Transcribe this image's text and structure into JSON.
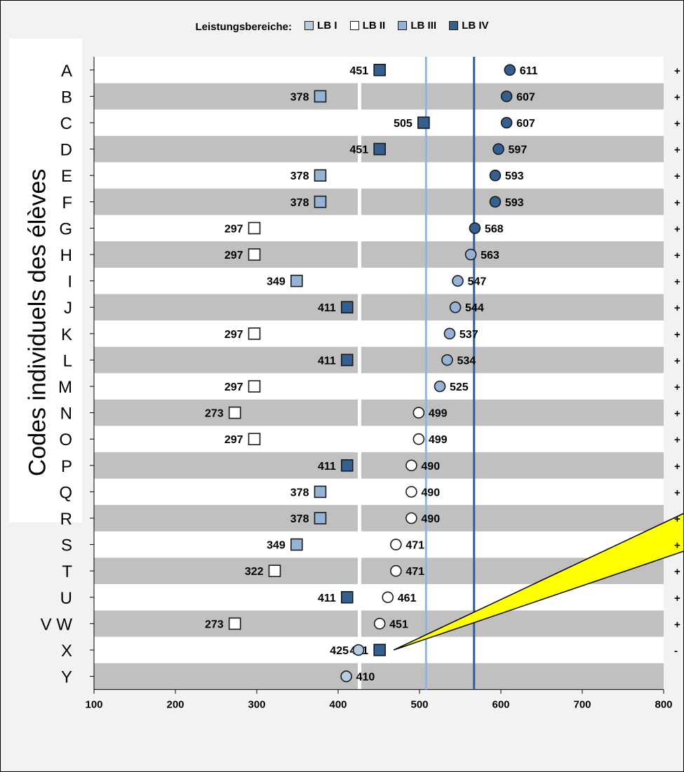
{
  "legend": {
    "title": "Leistungsbereiche:",
    "items": [
      {
        "label": "LB I",
        "color": "#b8cce4"
      },
      {
        "label": "LB II",
        "color": "#ffffff"
      },
      {
        "label": "LB III",
        "color": "#95b3d7"
      },
      {
        "label": "LB IV",
        "color": "#365f91"
      }
    ]
  },
  "chart_data": {
    "type": "scatter",
    "title": "",
    "xlabel": "",
    "ylabel": "Codes individuels des élèves",
    "xlim": [
      100,
      800
    ],
    "xticks": [
      100,
      200,
      300,
      400,
      500,
      600,
      700,
      800
    ],
    "reference_lines": [
      {
        "x": 508,
        "color": "#95b3d7"
      },
      {
        "x": 567,
        "color": "#365f91"
      }
    ],
    "rows": [
      {
        "code": "A",
        "square": 451,
        "square_level": "LB IV",
        "circle": 611,
        "circle_level": "LB IV",
        "sign": "+"
      },
      {
        "code": "B",
        "square": 378,
        "square_level": "LB III",
        "circle": 607,
        "circle_level": "LB IV",
        "sign": "+"
      },
      {
        "code": "C",
        "square": 505,
        "square_level": "LB IV",
        "circle": 607,
        "circle_level": "LB IV",
        "sign": "+"
      },
      {
        "code": "D",
        "square": 451,
        "square_level": "LB IV",
        "circle": 597,
        "circle_level": "LB IV",
        "sign": "+"
      },
      {
        "code": "E",
        "square": 378,
        "square_level": "LB III",
        "circle": 593,
        "circle_level": "LB IV",
        "sign": "+"
      },
      {
        "code": "F",
        "square": 378,
        "square_level": "LB III",
        "circle": 593,
        "circle_level": "LB IV",
        "sign": "+"
      },
      {
        "code": "G",
        "square": 297,
        "square_level": "LB II",
        "circle": 568,
        "circle_level": "LB IV",
        "sign": "+"
      },
      {
        "code": "H",
        "square": 297,
        "square_level": "LB II",
        "circle": 563,
        "circle_level": "LB III",
        "sign": "+"
      },
      {
        "code": "I",
        "square": 349,
        "square_level": "LB III",
        "circle": 547,
        "circle_level": "LB III",
        "sign": "+"
      },
      {
        "code": "J",
        "square": 411,
        "square_level": "LB IV",
        "circle": 544,
        "circle_level": "LB III",
        "sign": "+"
      },
      {
        "code": "K",
        "square": 297,
        "square_level": "LB II",
        "circle": 537,
        "circle_level": "LB III",
        "sign": "+"
      },
      {
        "code": "L",
        "square": 411,
        "square_level": "LB IV",
        "circle": 534,
        "circle_level": "LB III",
        "sign": "+"
      },
      {
        "code": "M",
        "square": 297,
        "square_level": "LB II",
        "circle": 525,
        "circle_level": "LB III",
        "sign": "+"
      },
      {
        "code": "N",
        "square": 273,
        "square_level": "LB II",
        "circle": 499,
        "circle_level": "LB II",
        "sign": "+"
      },
      {
        "code": "O",
        "square": 297,
        "square_level": "LB II",
        "circle": 499,
        "circle_level": "LB II",
        "sign": "+"
      },
      {
        "code": "P",
        "square": 411,
        "square_level": "LB IV",
        "circle": 490,
        "circle_level": "LB II",
        "sign": "+"
      },
      {
        "code": "Q",
        "square": 378,
        "square_level": "LB III",
        "circle": 490,
        "circle_level": "LB II",
        "sign": "+"
      },
      {
        "code": "R",
        "square": 378,
        "square_level": "LB III",
        "circle": 490,
        "circle_level": "LB II",
        "sign": "+"
      },
      {
        "code": "S",
        "square": 349,
        "square_level": "LB III",
        "circle": 471,
        "circle_level": "LB II",
        "sign": "+"
      },
      {
        "code": "T",
        "square": 322,
        "square_level": "LB II",
        "circle": 471,
        "circle_level": "LB II",
        "sign": "+"
      },
      {
        "code": "U",
        "square": 411,
        "square_level": "LB IV",
        "circle": 461,
        "circle_level": "LB II",
        "sign": "+"
      },
      {
        "code": "V W",
        "square": 273,
        "square_level": "LB II",
        "circle": 451,
        "circle_level": "LB II",
        "sign": "+"
      },
      {
        "code": "X",
        "square": 451,
        "square_level": "LB IV",
        "circle": 425,
        "circle_level": "LB I",
        "sign": "-"
      },
      {
        "code": "Y",
        "square": null,
        "square_level": null,
        "circle": 410,
        "circle_level": "LB I",
        "sign": ""
      }
    ],
    "colors": {
      "alternate_row": "#c0c0c0",
      "plot_background": "#ffffff",
      "callout": "#ffff00"
    }
  }
}
